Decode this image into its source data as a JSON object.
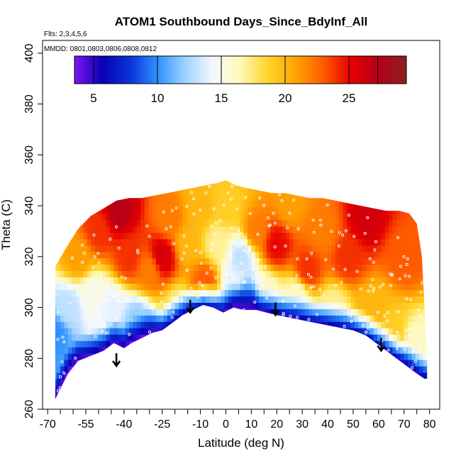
{
  "chart_data": {
    "type": "heatmap",
    "title": "ATOM1 Southbound Days_Since_BdyInf_All",
    "flights_note": "Flts: 2,3,4,5,6",
    "dates_note": "MMDD: 0801,0803,0806,0808,0812",
    "xlabel": "Latitude (deg N)",
    "ylabel": "Theta (C)",
    "xlim": [
      -72,
      84
    ],
    "ylim": [
      260,
      405
    ],
    "x_ticks": [
      -70,
      -55,
      -40,
      -25,
      -10,
      0,
      10,
      20,
      30,
      40,
      50,
      60,
      70,
      80
    ],
    "x_ticks_labeled": [
      -70,
      -55,
      -40,
      -25,
      -10,
      0,
      10,
      20,
      30,
      40,
      50,
      60,
      70,
      80
    ],
    "y_ticks": [
      260,
      280,
      300,
      320,
      340,
      360,
      380,
      400
    ],
    "colorbar": {
      "min": 3.5,
      "max": 29.5,
      "ticks": [
        5,
        10,
        15,
        20,
        25
      ],
      "colors": [
        "#7b16f0",
        "#0a00b4",
        "#0a32d8",
        "#2f90ff",
        "#9fd2ff",
        "#f4f8ff",
        "#fff9b5",
        "#ffd42a",
        "#ffa400",
        "#ff5a00",
        "#e60000",
        "#b3001a",
        "#8c2020"
      ]
    },
    "bottom_boundary": [
      [
        -67,
        264
      ],
      [
        -62,
        274
      ],
      [
        -58,
        279
      ],
      [
        -53,
        281
      ],
      [
        -48,
        283
      ],
      [
        -44,
        286
      ],
      [
        -40,
        284
      ],
      [
        -37,
        286
      ],
      [
        -33,
        288
      ],
      [
        -29,
        290
      ],
      [
        -25,
        291
      ],
      [
        -21,
        294
      ],
      [
        -17,
        297
      ],
      [
        -13,
        299
      ],
      [
        -9,
        301
      ],
      [
        -5,
        300
      ],
      [
        -1,
        298
      ],
      [
        3,
        300
      ],
      [
        7,
        299
      ],
      [
        12,
        299
      ],
      [
        16,
        298
      ],
      [
        20,
        297
      ],
      [
        25,
        296
      ],
      [
        30,
        295
      ],
      [
        35,
        294
      ],
      [
        40,
        293
      ],
      [
        45,
        292
      ],
      [
        50,
        291
      ],
      [
        55,
        289
      ],
      [
        59,
        286
      ],
      [
        63,
        283
      ],
      [
        67,
        280
      ],
      [
        71,
        277
      ],
      [
        75,
        274
      ],
      [
        78,
        272
      ]
    ],
    "top_boundary": [
      [
        -67,
        316
      ],
      [
        -63,
        323
      ],
      [
        -58,
        331
      ],
      [
        -53,
        336
      ],
      [
        -48,
        339
      ],
      [
        -43,
        342
      ],
      [
        -38,
        343
      ],
      [
        -33,
        343
      ],
      [
        -28,
        344
      ],
      [
        -23,
        345
      ],
      [
        -18,
        346
      ],
      [
        -13,
        347
      ],
      [
        -8,
        348
      ],
      [
        -3,
        349
      ],
      [
        0,
        350
      ],
      [
        4,
        348
      ],
      [
        8,
        347
      ],
      [
        13,
        346
      ],
      [
        18,
        345
      ],
      [
        23,
        345
      ],
      [
        28,
        344
      ],
      [
        33,
        343
      ],
      [
        38,
        343
      ],
      [
        43,
        342
      ],
      [
        48,
        341
      ],
      [
        53,
        340
      ],
      [
        58,
        339
      ],
      [
        63,
        338
      ],
      [
        68,
        338
      ],
      [
        72,
        337
      ],
      [
        75,
        333
      ],
      [
        77,
        320
      ],
      [
        78,
        300
      ],
      [
        79,
        280
      ],
      [
        79,
        272
      ]
    ],
    "arrows": [
      {
        "lat": -43,
        "theta": 282,
        "tip": 277
      },
      {
        "lat": -14,
        "theta": 303,
        "tip": 298
      },
      {
        "lat": 19.5,
        "theta": 302,
        "tip": 297
      },
      {
        "lat": 61,
        "theta": 288,
        "tip": 283
      }
    ],
    "field_anchors": [
      {
        "lat": -67,
        "theta": 290,
        "days": 10
      },
      {
        "lat": -62,
        "theta": 300,
        "days": 13
      },
      {
        "lat": -58,
        "theta": 320,
        "days": 21
      },
      {
        "lat": -52,
        "theta": 305,
        "days": 15
      },
      {
        "lat": -50,
        "theta": 330,
        "days": 24
      },
      {
        "lat": -45,
        "theta": 300,
        "days": 14
      },
      {
        "lat": -42,
        "theta": 338,
        "days": 27
      },
      {
        "lat": -38,
        "theta": 320,
        "days": 24
      },
      {
        "lat": -35,
        "theta": 295,
        "days": 12
      },
      {
        "lat": -30,
        "theta": 315,
        "days": 22
      },
      {
        "lat": -25,
        "theta": 320,
        "days": 26
      },
      {
        "lat": -22,
        "theta": 335,
        "days": 22
      },
      {
        "lat": -18,
        "theta": 300,
        "days": 17
      },
      {
        "lat": -15,
        "theta": 325,
        "days": 20
      },
      {
        "lat": -10,
        "theta": 340,
        "days": 20
      },
      {
        "lat": -8,
        "theta": 310,
        "days": 23
      },
      {
        "lat": -3,
        "theta": 325,
        "days": 17
      },
      {
        "lat": 0,
        "theta": 340,
        "days": 19
      },
      {
        "lat": 3,
        "theta": 310,
        "days": 14
      },
      {
        "lat": 6,
        "theta": 320,
        "days": 13
      },
      {
        "lat": 8,
        "theta": 305,
        "days": 11
      },
      {
        "lat": 12,
        "theta": 330,
        "days": 22
      },
      {
        "lat": 16,
        "theta": 305,
        "days": 16
      },
      {
        "lat": 20,
        "theta": 325,
        "days": 25
      },
      {
        "lat": 25,
        "theta": 340,
        "days": 21
      },
      {
        "lat": 28,
        "theta": 305,
        "days": 16
      },
      {
        "lat": 32,
        "theta": 315,
        "days": 24
      },
      {
        "lat": 38,
        "theta": 330,
        "days": 22
      },
      {
        "lat": 42,
        "theta": 300,
        "days": 17
      },
      {
        "lat": 48,
        "theta": 320,
        "days": 24
      },
      {
        "lat": 55,
        "theta": 335,
        "days": 26
      },
      {
        "lat": 58,
        "theta": 300,
        "days": 20
      },
      {
        "lat": 65,
        "theta": 290,
        "days": 19
      },
      {
        "lat": 70,
        "theta": 320,
        "days": 23
      },
      {
        "lat": 75,
        "theta": 285,
        "days": 16
      }
    ]
  }
}
